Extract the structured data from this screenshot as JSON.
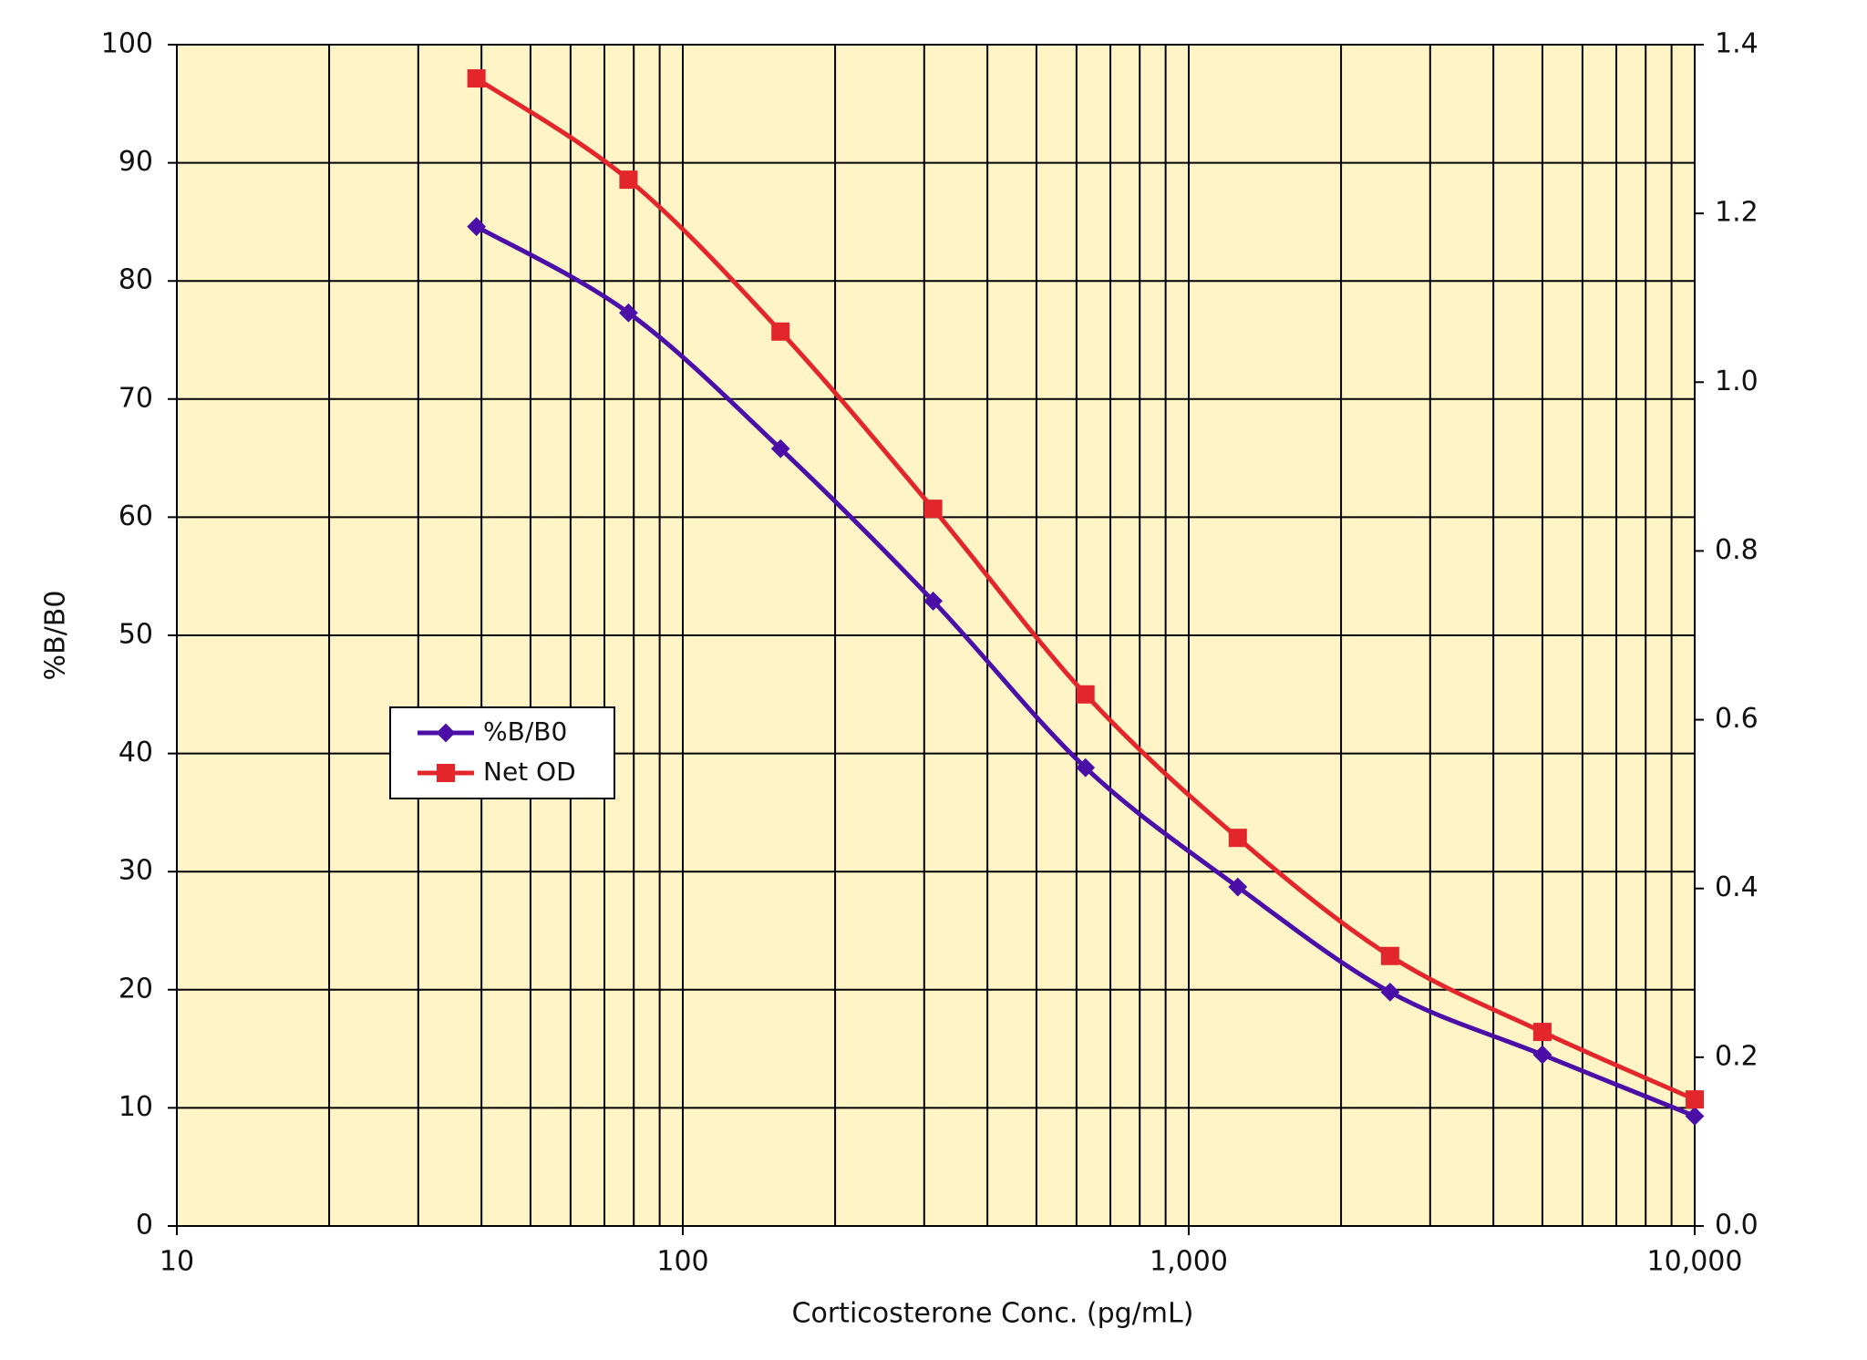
{
  "chart_data": {
    "type": "line",
    "x_label": "Corticosterone Conc. (pg/mL)",
    "y_label": "%B/B0",
    "x": [
      39.1,
      78.1,
      156,
      312.5,
      625,
      1250,
      2500,
      5000,
      10000
    ],
    "series": [
      {
        "name": "%B/B0",
        "color": "#4b0fa8",
        "marker": "diamond",
        "values": [
          84.6,
          77.3,
          65.8,
          52.9,
          38.8,
          28.7,
          19.8,
          14.5,
          9.3
        ]
      },
      {
        "name": "Net OD",
        "color": "#e3262b",
        "marker": "square",
        "axis": "y2",
        "values": [
          1.36,
          1.24,
          1.06,
          0.85,
          0.63,
          0.46,
          0.32,
          0.23,
          0.15
        ]
      }
    ],
    "xscale": "log",
    "xlim": [
      10,
      10000
    ],
    "xticks": [
      10,
      100,
      {
        "value": 1000,
        "label": "1,000"
      },
      {
        "value": 10000,
        "label": "10,000"
      }
    ],
    "xminorticks": [
      20,
      30,
      40,
      50,
      60,
      70,
      80,
      90,
      200,
      300,
      400,
      500,
      600,
      700,
      800,
      900,
      2000,
      3000,
      4000,
      5000,
      6000,
      7000,
      8000,
      9000
    ],
    "ylim": [
      0,
      100
    ],
    "yticks": [
      0,
      10,
      20,
      30,
      40,
      50,
      60,
      70,
      80,
      90,
      100
    ],
    "y2lim": [
      0,
      1.4
    ],
    "y2ticks": [
      {
        "value": 0,
        "label": "0.0"
      },
      0.2,
      0.4,
      0.6,
      0.8,
      {
        "value": 1,
        "label": "1.0"
      },
      1.2,
      1.4
    ],
    "grid": true,
    "background": "#fff4c6",
    "legend": "center-left"
  }
}
